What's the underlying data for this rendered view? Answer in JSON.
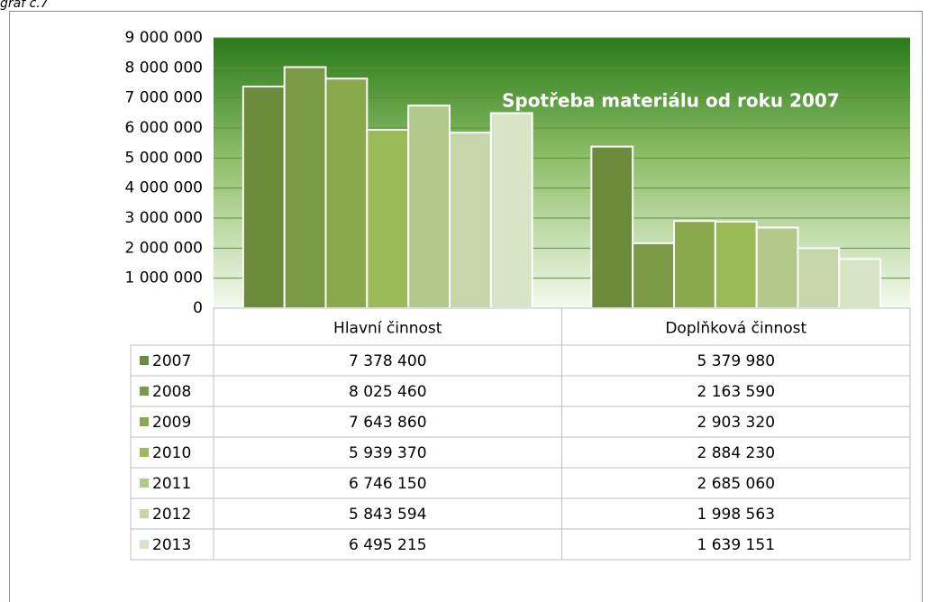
{
  "caption": "graf č.7",
  "chart_data": {
    "type": "bar",
    "title": "Spotřeba materiálu od roku  2007",
    "categories": [
      "Hlavní činnost",
      "Doplňková činnost"
    ],
    "series": [
      {
        "name": "2007",
        "color": "#6b8a3a",
        "values": [
          7378400,
          5379980
        ],
        "value_labels": [
          "7 378 400",
          "5 379 980"
        ]
      },
      {
        "name": "2008",
        "color": "#7b9a45",
        "values": [
          8025460,
          2163590
        ],
        "value_labels": [
          "8 025 460",
          "2 163 590"
        ]
      },
      {
        "name": "2009",
        "color": "#8aa94f",
        "values": [
          7643860,
          2903320
        ],
        "value_labels": [
          "7 643 860",
          "2 903 320"
        ]
      },
      {
        "name": "2010",
        "color": "#9bbb59",
        "values": [
          5939370,
          2884230
        ],
        "value_labels": [
          "5 939 370",
          "2 884 230"
        ]
      },
      {
        "name": "2011",
        "color": "#b2c98b",
        "values": [
          6746150,
          2685060
        ],
        "value_labels": [
          "6 746 150",
          "2 685 060"
        ]
      },
      {
        "name": "2012",
        "color": "#c6d6aa",
        "values": [
          5843594,
          1998563
        ],
        "value_labels": [
          "5 843 594",
          "1 998 563"
        ]
      },
      {
        "name": "2013",
        "color": "#d8e4c6",
        "values": [
          6495215,
          1639151
        ],
        "value_labels": [
          "6 495 215",
          "1 639 151"
        ]
      }
    ],
    "ylim": [
      0,
      9000000
    ],
    "yticks": [
      0,
      {
        "value": 1000000,
        "label": "1 000 000"
      },
      {
        "value": 2000000,
        "label": "2 000 000"
      },
      {
        "value": 3000000,
        "label": "3 000 000"
      },
      {
        "value": 4000000,
        "label": "4 000 000"
      },
      {
        "value": 5000000,
        "label": "5 000 000"
      },
      {
        "value": 6000000,
        "label": "6 000 000"
      },
      {
        "value": 7000000,
        "label": "7 000 000"
      },
      {
        "value": 8000000,
        "label": "8 000 000"
      },
      {
        "value": 9000000,
        "label": "9 000 000"
      }
    ],
    "grid": true
  }
}
